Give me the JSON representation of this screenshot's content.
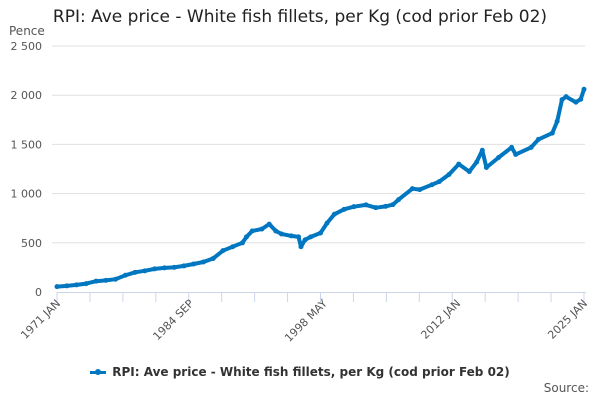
{
  "chart_data": {
    "type": "line",
    "title": "RPI: Ave price - White fish fillets, per Kg (cod prior Feb 02)",
    "ylabel": "Pence",
    "xlabel": "",
    "ylim": [
      0,
      2500
    ],
    "yticks": [
      0,
      500,
      1000,
      1500,
      2000,
      2500
    ],
    "ytick_labels": [
      "0",
      "500",
      "1 000",
      "1 500",
      "2 000",
      "2 500"
    ],
    "xlim": [
      "1971-01",
      "2025-01"
    ],
    "xtick_labels": [
      "1971 JAN",
      "1984 SEP",
      "1998 MAY",
      "2012 JAN",
      "2025 JAN"
    ],
    "xtick_dates": [
      "1971-01",
      "1984-09",
      "1998-05",
      "2012-01",
      "2025-01"
    ],
    "grid": "horizontal",
    "legend_position": "bottom",
    "color": "#0077c0",
    "series": [
      {
        "name": "RPI: Ave price - White fish fillets, per Kg (cod prior Feb 02)",
        "points": [
          [
            "1971-01",
            55
          ],
          [
            "1972-01",
            62
          ],
          [
            "1973-01",
            72
          ],
          [
            "1974-01",
            85
          ],
          [
            "1975-01",
            110
          ],
          [
            "1976-01",
            118
          ],
          [
            "1977-01",
            130
          ],
          [
            "1978-01",
            170
          ],
          [
            "1979-01",
            200
          ],
          [
            "1980-01",
            215
          ],
          [
            "1981-01",
            235
          ],
          [
            "1982-01",
            245
          ],
          [
            "1983-01",
            250
          ],
          [
            "1984-01",
            265
          ],
          [
            "1985-01",
            285
          ],
          [
            "1986-01",
            305
          ],
          [
            "1987-01",
            340
          ],
          [
            "1988-01",
            420
          ],
          [
            "1989-01",
            460
          ],
          [
            "1990-01",
            500
          ],
          [
            "1990-06",
            560
          ],
          [
            "1991-01",
            620
          ],
          [
            "1992-01",
            640
          ],
          [
            "1992-10",
            690
          ],
          [
            "1993-06",
            620
          ],
          [
            "1994-01",
            590
          ],
          [
            "1995-01",
            570
          ],
          [
            "1995-10",
            560
          ],
          [
            "1996-01",
            460
          ],
          [
            "1996-06",
            530
          ],
          [
            "1997-01",
            560
          ],
          [
            "1998-01",
            600
          ],
          [
            "1998-09",
            700
          ],
          [
            "1999-06",
            790
          ],
          [
            "2000-06",
            840
          ],
          [
            "2001-06",
            867
          ],
          [
            "2002-09",
            885
          ],
          [
            "2003-09",
            857
          ],
          [
            "2004-09",
            870
          ],
          [
            "2005-06",
            888
          ],
          [
            "2006-01",
            939
          ],
          [
            "2007-06",
            1050
          ],
          [
            "2008-03",
            1041
          ],
          [
            "2009-06",
            1090
          ],
          [
            "2010-03",
            1122
          ],
          [
            "2011-03",
            1194
          ],
          [
            "2012-03",
            1300
          ],
          [
            "2013-04",
            1224
          ],
          [
            "2014-01",
            1320
          ],
          [
            "2014-08",
            1440
          ],
          [
            "2015-01",
            1265
          ],
          [
            "2016-04",
            1367
          ],
          [
            "2017-08",
            1470
          ],
          [
            "2018-01",
            1398
          ],
          [
            "2019-08",
            1470
          ],
          [
            "2020-05",
            1551
          ],
          [
            "2021-10",
            1615
          ],
          [
            "2022-04",
            1735
          ],
          [
            "2022-10",
            1955
          ],
          [
            "2023-03",
            1985
          ],
          [
            "2024-03",
            1929
          ],
          [
            "2024-09",
            1959
          ],
          [
            "2025-01",
            2060
          ]
        ]
      }
    ],
    "source_label": "Source:"
  }
}
